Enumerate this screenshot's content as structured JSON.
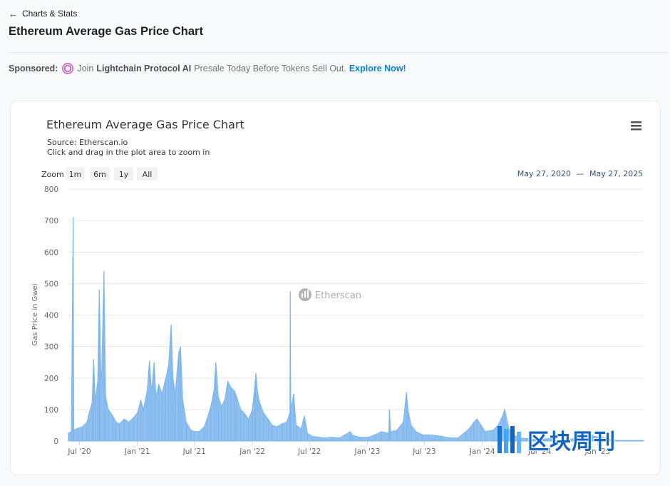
{
  "header": {
    "back_label": "Charts & Stats",
    "page_title": "Ethereum Average Gas Price Chart"
  },
  "sponsor": {
    "label": "Sponsored:",
    "text_pre": "Join",
    "brand": "Lightchain Protocol AI",
    "text_post": "Presale Today Before Tokens Sell Out.",
    "link": "Explore Now!"
  },
  "toolbar": {
    "zoom_label": "Zoom",
    "zoom_options": [
      "1m",
      "6m",
      "1y",
      "All"
    ],
    "range_start": "May 27, 2020",
    "range_sep": "—",
    "range_end": "May 27, 2025",
    "menu_icon": "hamburger-menu-icon"
  },
  "watermark": {
    "text": "Etherscan",
    "overlay_text": "区块周刊"
  },
  "colors": {
    "series": "#7cb5ec",
    "link": "#0784c3",
    "overlay": "#1565c0"
  },
  "chart_data": {
    "type": "area",
    "title": "Ethereum Average Gas Price Chart",
    "subtitle": "Source: Etherscan.io",
    "subtitle2": "Click and drag in the plot area to zoom in",
    "ylabel": "Gas Price in Gwei",
    "ylim": [
      0,
      800
    ],
    "yticks": [
      0,
      100,
      200,
      300,
      400,
      500,
      600,
      700,
      800
    ],
    "xlim": [
      "2020-05-27",
      "2025-05-27"
    ],
    "xticks": [
      {
        "date": "2020-07-01",
        "label": "Jul '20"
      },
      {
        "date": "2021-01-01",
        "label": "Jan '21"
      },
      {
        "date": "2021-07-01",
        "label": "Jul '21"
      },
      {
        "date": "2022-01-01",
        "label": "Jan '22"
      },
      {
        "date": "2022-07-01",
        "label": "Jul '22"
      },
      {
        "date": "2023-01-01",
        "label": "Jan '23"
      },
      {
        "date": "2023-07-01",
        "label": "Jul '23"
      },
      {
        "date": "2024-01-01",
        "label": "Jan '24"
      },
      {
        "date": "2024-07-01",
        "label": "Jul '24"
      },
      {
        "date": "2025-01-01",
        "label": "Jan '25"
      }
    ],
    "grid": true,
    "legend": "none",
    "series": [
      {
        "values": [
          [
            "2020-05-27",
            25
          ],
          [
            "2020-06-05",
            30
          ],
          [
            "2020-06-11",
            710
          ],
          [
            "2020-06-13",
            35
          ],
          [
            "2020-06-25",
            40
          ],
          [
            "2020-07-10",
            45
          ],
          [
            "2020-07-25",
            60
          ],
          [
            "2020-08-01",
            90
          ],
          [
            "2020-08-10",
            120
          ],
          [
            "2020-08-15",
            260
          ],
          [
            "2020-08-20",
            130
          ],
          [
            "2020-08-28",
            190
          ],
          [
            "2020-09-02",
            480
          ],
          [
            "2020-09-08",
            160
          ],
          [
            "2020-09-17",
            540
          ],
          [
            "2020-09-22",
            140
          ],
          [
            "2020-10-01",
            100
          ],
          [
            "2020-10-15",
            80
          ],
          [
            "2020-10-25",
            60
          ],
          [
            "2020-11-05",
            55
          ],
          [
            "2020-11-20",
            70
          ],
          [
            "2020-12-05",
            60
          ],
          [
            "2020-12-20",
            75
          ],
          [
            "2021-01-01",
            90
          ],
          [
            "2021-01-12",
            130
          ],
          [
            "2021-01-20",
            100
          ],
          [
            "2021-02-01",
            160
          ],
          [
            "2021-02-08",
            255
          ],
          [
            "2021-02-15",
            160
          ],
          [
            "2021-02-23",
            250
          ],
          [
            "2021-03-01",
            140
          ],
          [
            "2021-03-10",
            180
          ],
          [
            "2021-03-20",
            150
          ],
          [
            "2021-04-01",
            200
          ],
          [
            "2021-04-10",
            240
          ],
          [
            "2021-04-18",
            370
          ],
          [
            "2021-04-24",
            200
          ],
          [
            "2021-05-01",
            150
          ],
          [
            "2021-05-12",
            280
          ],
          [
            "2021-05-18",
            300
          ],
          [
            "2021-05-25",
            130
          ],
          [
            "2021-06-05",
            60
          ],
          [
            "2021-06-20",
            35
          ],
          [
            "2021-07-01",
            30
          ],
          [
            "2021-07-15",
            30
          ],
          [
            "2021-08-01",
            45
          ],
          [
            "2021-08-10",
            70
          ],
          [
            "2021-08-22",
            110
          ],
          [
            "2021-09-01",
            160
          ],
          [
            "2021-09-07",
            250
          ],
          [
            "2021-09-15",
            140
          ],
          [
            "2021-09-25",
            110
          ],
          [
            "2021-10-05",
            130
          ],
          [
            "2021-10-15",
            190
          ],
          [
            "2021-10-25",
            170
          ],
          [
            "2021-11-05",
            160
          ],
          [
            "2021-11-12",
            140
          ],
          [
            "2021-11-25",
            100
          ],
          [
            "2021-12-05",
            90
          ],
          [
            "2021-12-20",
            70
          ],
          [
            "2022-01-01",
            100
          ],
          [
            "2022-01-08",
            170
          ],
          [
            "2022-01-12",
            215
          ],
          [
            "2022-01-18",
            150
          ],
          [
            "2022-01-25",
            120
          ],
          [
            "2022-02-05",
            90
          ],
          [
            "2022-02-20",
            70
          ],
          [
            "2022-03-05",
            50
          ],
          [
            "2022-03-20",
            45
          ],
          [
            "2022-04-05",
            55
          ],
          [
            "2022-04-20",
            60
          ],
          [
            "2022-04-30",
            90
          ],
          [
            "2022-05-01",
            475
          ],
          [
            "2022-05-03",
            100
          ],
          [
            "2022-05-12",
            150
          ],
          [
            "2022-05-20",
            50
          ],
          [
            "2022-06-05",
            40
          ],
          [
            "2022-06-15",
            80
          ],
          [
            "2022-06-25",
            25
          ],
          [
            "2022-07-10",
            15
          ],
          [
            "2022-08-01",
            12
          ],
          [
            "2022-08-20",
            10
          ],
          [
            "2022-09-10",
            12
          ],
          [
            "2022-10-05",
            10
          ],
          [
            "2022-11-08",
            30
          ],
          [
            "2022-11-15",
            18
          ],
          [
            "2022-12-10",
            12
          ],
          [
            "2023-01-05",
            12
          ],
          [
            "2023-01-25",
            20
          ],
          [
            "2023-02-15",
            30
          ],
          [
            "2023-03-10",
            25
          ],
          [
            "2023-03-12",
            100
          ],
          [
            "2023-03-16",
            30
          ],
          [
            "2023-04-05",
            35
          ],
          [
            "2023-04-25",
            60
          ],
          [
            "2023-05-05",
            155
          ],
          [
            "2023-05-10",
            100
          ],
          [
            "2023-05-20",
            50
          ],
          [
            "2023-06-05",
            30
          ],
          [
            "2023-06-25",
            20
          ],
          [
            "2023-07-15",
            20
          ],
          [
            "2023-08-05",
            18
          ],
          [
            "2023-08-25",
            15
          ],
          [
            "2023-09-20",
            10
          ],
          [
            "2023-10-15",
            10
          ],
          [
            "2023-11-10",
            30
          ],
          [
            "2023-11-25",
            45
          ],
          [
            "2023-12-05",
            60
          ],
          [
            "2023-12-15",
            70
          ],
          [
            "2023-12-28",
            50
          ],
          [
            "2024-01-10",
            30
          ],
          [
            "2024-02-05",
            35
          ],
          [
            "2024-02-20",
            50
          ],
          [
            "2024-03-05",
            80
          ],
          [
            "2024-03-12",
            100
          ],
          [
            "2024-03-25",
            40
          ],
          [
            "2024-04-10",
            20
          ],
          [
            "2024-04-25",
            10
          ],
          [
            "2024-05-20",
            8
          ],
          [
            "2024-06-15",
            6
          ],
          [
            "2024-07-10",
            5
          ],
          [
            "2024-08-05",
            10
          ],
          [
            "2024-08-15",
            3
          ],
          [
            "2024-09-10",
            3
          ],
          [
            "2024-10-10",
            6
          ],
          [
            "2024-11-10",
            20
          ],
          [
            "2024-11-25",
            18
          ],
          [
            "2024-12-05",
            25
          ],
          [
            "2024-12-20",
            15
          ],
          [
            "2025-01-10",
            12
          ],
          [
            "2025-02-01",
            8
          ],
          [
            "2025-02-20",
            3
          ],
          [
            "2025-03-15",
            2
          ],
          [
            "2025-04-10",
            2
          ],
          [
            "2025-05-27",
            2
          ]
        ]
      }
    ]
  }
}
